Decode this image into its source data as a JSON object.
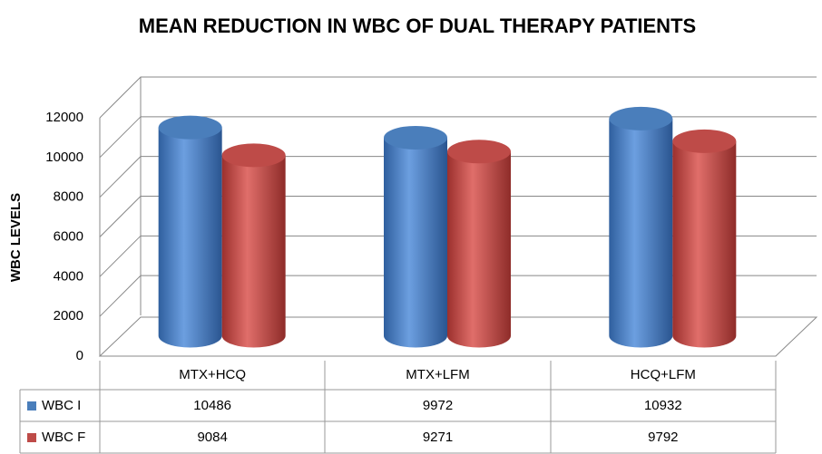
{
  "chart_data": {
    "type": "bar",
    "title": "MEAN REDUCTION IN WBC  OF DUAL THERAPY PATIENTS",
    "y_label": "WBC LEVELS",
    "categories": [
      "MTX+HCQ",
      "MTX+LFM",
      "HCQ+LFM"
    ],
    "series": [
      {
        "name": "WBC I",
        "color": "#4a7ebb",
        "values": [
          10486,
          9972,
          10932
        ]
      },
      {
        "name": "WBC F",
        "color": "#be4b48",
        "values": [
          9084,
          9271,
          9792
        ]
      }
    ],
    "ylim": [
      0,
      12000
    ],
    "yticks": [
      0,
      2000,
      4000,
      6000,
      8000,
      10000,
      12000
    ],
    "grid": true
  }
}
